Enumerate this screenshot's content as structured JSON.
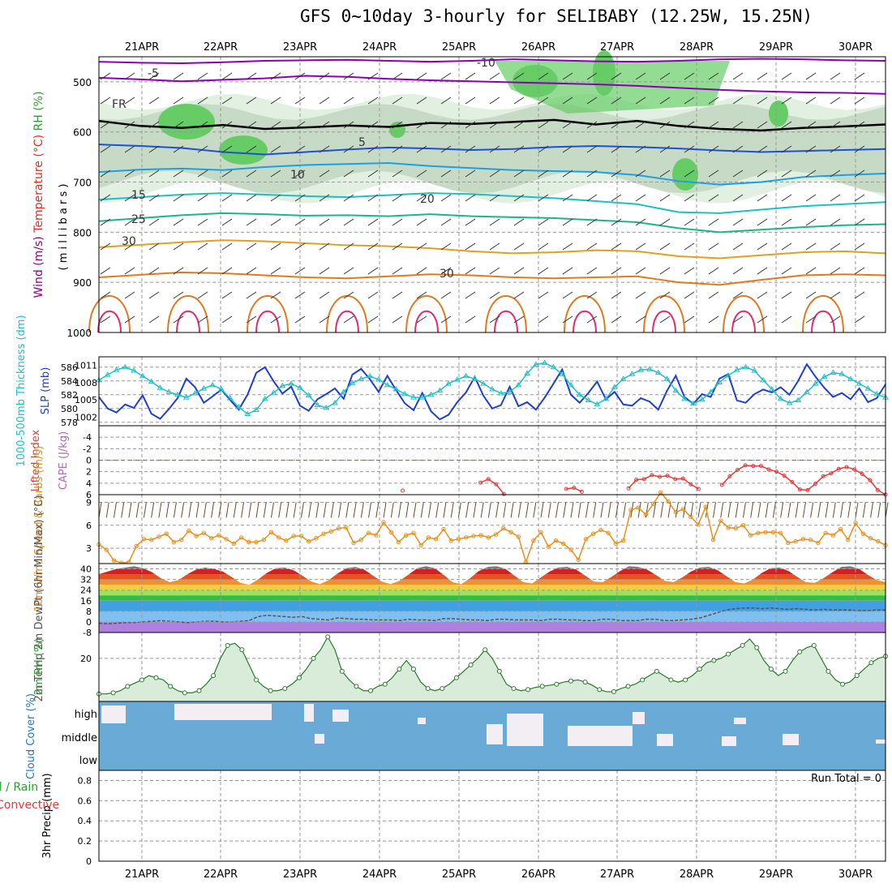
{
  "title": "GFS 0~10day 3-hourly for SELIBABY (12.25W, 15.25N)",
  "run_total": "Run Total = 0",
  "colors": {
    "wind_label": "#8b008b",
    "temp_label": "#e0301e",
    "rh_label": "#2ca02c",
    "rh_fill": "#d9ecd9",
    "rh_mid": "#bfd5bf",
    "rh_hi": "#66cc66",
    "slp_line": "#1e3fd0",
    "thick_line": "#1fc0c8",
    "cape_label": "#b06ab3",
    "li_line": "#e03c3c",
    "wind10_line": "#e8901e",
    "cloud_fill": "#6aaad6",
    "cloud_gap": "#f2eef4"
  },
  "chart_data": [
    {
      "type": "line",
      "panel": "upper-air",
      "x_ticks": [
        "21APR",
        "22APR",
        "23APR",
        "24APR",
        "25APR",
        "26APR",
        "27APR",
        "28APR",
        "29APR",
        "30APR"
      ],
      "y_label_parts": [
        "Wind (m/s)",
        "Temperature (°C)",
        "RH (%)",
        "( m i l l i b a r s )"
      ],
      "y_ticks": [
        "500",
        "600",
        "700",
        "800",
        "900",
        "1000"
      ],
      "ylim": [
        450,
        1000
      ],
      "contour_labels": [
        "-10",
        "-5",
        "FR",
        "5",
        "10",
        "15",
        "20",
        "25",
        "30",
        "30",
        "30",
        "30"
      ],
      "series": [
        {
          "name": "-10",
          "values": [
            460,
            462,
            463,
            461,
            458,
            457,
            456,
            458,
            460,
            458,
            455,
            457,
            459,
            460,
            458,
            455,
            454,
            455,
            457,
            458
          ]
        },
        {
          "name": "-5",
          "values": [
            492,
            495,
            499,
            496,
            493,
            488,
            490,
            494,
            497,
            499,
            501,
            503,
            505,
            508,
            512,
            516,
            519,
            521,
            522,
            524
          ]
        },
        {
          "name": "FR",
          "values": [
            578,
            588,
            592,
            586,
            594,
            591,
            587,
            590,
            582,
            584,
            580,
            576,
            585,
            578,
            588,
            594,
            597,
            592,
            589,
            585
          ]
        },
        {
          "name": "5",
          "values": [
            625,
            628,
            632,
            640,
            645,
            640,
            635,
            631,
            633,
            636,
            634,
            630,
            628,
            630,
            633,
            637,
            640,
            638,
            636,
            634
          ]
        },
        {
          "name": "10",
          "values": [
            680,
            675,
            673,
            676,
            670,
            666,
            664,
            662,
            668,
            672,
            676,
            678,
            680,
            686,
            698,
            705,
            700,
            690,
            686,
            683
          ]
        },
        {
          "name": "15",
          "values": [
            735,
            730,
            725,
            722,
            725,
            728,
            730,
            726,
            722,
            724,
            728,
            732,
            738,
            744,
            760,
            762,
            755,
            748,
            744,
            740
          ]
        },
        {
          "name": "20",
          "values": [
            778,
            772,
            766,
            762,
            764,
            767,
            766,
            768,
            764,
            768,
            770,
            772,
            776,
            780,
            792,
            800,
            795,
            790,
            786,
            784
          ]
        },
        {
          "name": "25",
          "values": [
            830,
            825,
            820,
            816,
            818,
            822,
            826,
            828,
            832,
            838,
            842,
            840,
            836,
            838,
            848,
            852,
            846,
            840,
            838,
            842
          ]
        },
        {
          "name": "30",
          "values": [
            890,
            885,
            880,
            882,
            886,
            890,
            892,
            888,
            884,
            886,
            890,
            892,
            890,
            888,
            900,
            905,
            895,
            886,
            884,
            886
          ]
        }
      ]
    },
    {
      "type": "line",
      "panel": "thickness-slp",
      "y_label_left": "1000-500mb Thickness (dm)",
      "y_label_right": "SLP (mb)",
      "left_ticks": [
        "586",
        "584",
        "582",
        "580",
        "578"
      ],
      "right_ticks": [
        "1011",
        "1008",
        "1005",
        "1002"
      ],
      "left_lim": [
        577.5,
        587.5
      ],
      "right_lim": [
        1000.5,
        1012.5
      ],
      "series": [
        {
          "name": "SLP (mb)",
          "values": [
            1005.5,
            1003.5,
            1002.8,
            1004.2,
            1003.6,
            1005.8,
            1002.6,
            1001.7,
            1003.4,
            1005.3,
            1008.7,
            1007.2,
            1004.5,
            1005.6,
            1006.8,
            1005.0,
            1003.3,
            1005.9,
            1009.7,
            1010.7,
            1008.2,
            1006.1,
            1007.3,
            1004.0,
            1003.1,
            1005.1,
            1006.0,
            1007.0,
            1005.2,
            1009.4,
            1010.4,
            1008.6,
            1006.4,
            1009.2,
            1006.7,
            1004.4,
            1003.2,
            1006.2,
            1003.0,
            1001.6,
            1002.4,
            1004.6,
            1006.3,
            1009.0,
            1005.7,
            1003.5,
            1004.1,
            1007.3,
            1003.9,
            1004.6,
            1003.3,
            1005.4,
            1007.8,
            1010.3,
            1005.9,
            1004.5,
            1006.2,
            1008.2,
            1005.1,
            1006.4,
            1004.2,
            1004.0,
            1005.3,
            1004.7,
            1003.3,
            1006.6,
            1009.2,
            1005.5,
            1004.3,
            1006.0,
            1005.5,
            1008.7,
            1009.5,
            1004.9,
            1004.5,
            1006.0,
            1006.8,
            1006.3,
            1007.2,
            1005.9,
            1008.3,
            1011.2,
            1009.0,
            1007.1,
            1005.5,
            1006.2,
            1005.1,
            1007.0,
            1004.6,
            1005.3,
            1007.7
          ]
        },
        {
          "name": "1000-500mb Thickness (dm)",
          "values": [
            584.1,
            584.9,
            585.6,
            586.0,
            585.5,
            584.7,
            583.9,
            583.0,
            582.4,
            582.0,
            581.6,
            582.2,
            582.9,
            583.4,
            582.8,
            581.5,
            580.2,
            579.2,
            579.8,
            581.4,
            582.3,
            583.3,
            583.6,
            583.0,
            581.9,
            580.5,
            580.1,
            580.8,
            582.4,
            583.7,
            584.3,
            584.7,
            584.2,
            583.4,
            582.8,
            582.1,
            581.6,
            581.6,
            582.0,
            582.6,
            583.6,
            584.2,
            584.7,
            584.3,
            583.6,
            582.8,
            582.2,
            582.4,
            583.4,
            585.1,
            586.4,
            586.6,
            586.0,
            585.0,
            583.4,
            582.0,
            581.2,
            580.6,
            581.4,
            583.1,
            584.3,
            585.0,
            585.6,
            585.7,
            585.2,
            584.3,
            582.6,
            581.4,
            580.7,
            581.3,
            582.4,
            583.8,
            584.8,
            585.6,
            586.0,
            585.5,
            584.1,
            582.8,
            581.4,
            580.8,
            581.2,
            582.4,
            583.6,
            584.6,
            585.2,
            585.0,
            584.3,
            583.6,
            582.9,
            582.1,
            581.6
          ]
        }
      ]
    },
    {
      "type": "line",
      "panel": "lifted-index-cape",
      "y_label_left": "Lifted Index",
      "y_label_right": "CAPE (J/kg)",
      "y_ticks": [
        "-4",
        "-2",
        "0",
        "2",
        "4",
        "6"
      ],
      "ylim": [
        6,
        -6
      ],
      "series": [
        {
          "name": "Lifted Index",
          "values": [
            null,
            null,
            null,
            null,
            null,
            null,
            null,
            null,
            null,
            null,
            null,
            null,
            null,
            null,
            null,
            null,
            null,
            null,
            null,
            null,
            null,
            null,
            null,
            null,
            null,
            null,
            null,
            null,
            null,
            null,
            null,
            null,
            null,
            null,
            null,
            null,
            null,
            null,
            null,
            5.3,
            null,
            null,
            null,
            null,
            null,
            null,
            null,
            null,
            null,
            3.9,
            3.3,
            4.2,
            5.9,
            null,
            null,
            null,
            null,
            null,
            null,
            null,
            5.0,
            4.8,
            5.5,
            null,
            null,
            null,
            null,
            null,
            4.9,
            3.4,
            3.3,
            2.6,
            2.9,
            2.7,
            3.3,
            3.2,
            4.2,
            5.0,
            null,
            null,
            4.3,
            2.8,
            1.7,
            0.9,
            1.0,
            1.0,
            1.6,
            2.0,
            2.7,
            3.8,
            5.1,
            5.2,
            4.1,
            2.8,
            2.3,
            1.5,
            1.2,
            1.6,
            2.4,
            3.5,
            5.2,
            6.0
          ]
        }
      ]
    },
    {
      "type": "line",
      "panel": "10m-wind",
      "y_label": "10m Wind Speed & Barbs (m/s)",
      "y_ticks": [
        "3",
        "6",
        "9"
      ],
      "ylim": [
        1,
        10
      ],
      "series": [
        {
          "name": "10m Wind Speed",
          "values": [
            3.5,
            2.8,
            1.4,
            1.1,
            1.2,
            3.3,
            4.2,
            4.1,
            4.5,
            4.9,
            3.8,
            4.1,
            5.3,
            4.6,
            5.0,
            4.3,
            4.7,
            4.2,
            3.6,
            4.4,
            3.8,
            3.8,
            4.1,
            5.1,
            4.4,
            4.0,
            4.6,
            4.6,
            3.9,
            4.3,
            4.9,
            5.2,
            5.6,
            5.7,
            3.7,
            4.1,
            5.0,
            4.7,
            6.4,
            5.1,
            3.8,
            4.7,
            5.0,
            3.4,
            4.4,
            4.2,
            5.5,
            4.0,
            4.2,
            4.4,
            4.6,
            4.7,
            4.4,
            4.8,
            5.6,
            5.1,
            4.5,
            1.2,
            4.0,
            5.1,
            3.2,
            4.0,
            3.6,
            2.8,
            1.5,
            4.2,
            4.9,
            5.4,
            5.0,
            3.6,
            4.0,
            8.0,
            8.3,
            7.4,
            8.8,
            10.3,
            9.1,
            7.7,
            8.1,
            7.1,
            6.1,
            8.4,
            4.1,
            6.6,
            5.7,
            5.6,
            6.0,
            4.7,
            5.0,
            5.1,
            5.1,
            5.0,
            3.7,
            3.9,
            4.2,
            4.1,
            3.7,
            5.0,
            4.7,
            5.5,
            4.1,
            6.3,
            4.9,
            4.3,
            3.9,
            3.4
          ]
        }
      ]
    },
    {
      "type": "line",
      "panel": "2m-temp",
      "y_label": "2m Temp 2m DewPt (6hr Min/Max) (°C)",
      "y_ticks": [
        "40",
        "32",
        "24",
        "16",
        "8",
        "0",
        "-8"
      ],
      "ylim": [
        -8,
        44
      ],
      "series": [
        {
          "name": "2m Temp",
          "values": [
            36.0,
            38.0,
            40.0,
            41.0,
            42.0,
            40.5,
            37.5,
            33.0,
            30.0,
            31.5,
            36.0,
            39.5,
            41.0,
            40.0,
            38.0,
            34.0,
            29.5,
            28.0,
            32.0,
            37.0,
            40.5,
            41.0,
            39.0,
            35.0,
            30.5,
            28.5,
            31.5,
            36.5,
            40.5,
            41.5,
            39.5,
            35.0,
            30.5,
            28.5,
            31.0,
            35.5,
            40.5,
            42.0,
            40.5,
            35.5,
            30.0,
            28.5,
            33.0,
            38.5,
            41.5,
            42.0,
            40.0,
            35.0,
            30.0,
            29.0,
            33.5,
            38.0,
            41.0,
            41.5,
            39.5,
            35.0,
            30.5,
            30.0,
            34.0,
            38.5,
            42.0,
            41.5,
            39.5,
            35.5,
            31.0,
            30.0,
            33.5,
            38.0,
            41.0,
            41.5,
            39.0,
            34.5,
            30.0,
            29.0,
            32.0,
            37.0,
            40.5,
            41.0,
            38.5,
            34.0,
            30.0,
            29.5,
            33.0,
            37.5,
            41.5,
            42.0,
            40.0,
            35.5,
            31.5,
            30.0
          ]
        },
        {
          "name": "2m DewPt",
          "values": [
            -1.0,
            -1.5,
            -1.0,
            -0.5,
            -0.5,
            0.0,
            0.5,
            1.0,
            0.5,
            0.0,
            -0.5,
            0.0,
            0.5,
            0.5,
            0.0,
            0.0,
            0.5,
            1.0,
            4.0,
            5.0,
            4.5,
            4.0,
            3.5,
            4.0,
            2.5,
            2.0,
            1.5,
            3.0,
            2.5,
            2.0,
            2.0,
            1.5,
            1.5,
            1.5,
            1.0,
            2.0,
            1.5,
            1.5,
            1.0,
            2.5,
            2.5,
            2.0,
            1.5,
            1.5,
            1.0,
            2.0,
            2.0,
            1.5,
            1.5,
            1.5,
            1.0,
            2.0,
            2.0,
            1.5,
            1.5,
            1.0,
            1.0,
            2.0,
            2.0,
            1.0,
            1.0,
            1.0,
            2.0,
            2.0,
            1.0,
            1.0,
            1.5,
            2.0,
            3.0,
            5.0,
            7.0,
            9.0,
            10.0,
            10.5,
            10.5,
            10.0,
            10.5,
            10.0,
            9.5,
            10.0,
            9.5,
            9.0,
            9.5,
            9.0,
            9.0,
            9.0,
            8.5,
            8.5,
            9.0,
            9.0
          ]
        }
      ]
    },
    {
      "type": "area",
      "panel": "2m-rh",
      "y_label": "2m RH (%)",
      "y_ticks": [
        "20"
      ],
      "ylim": [
        0,
        32
      ],
      "series": [
        {
          "name": "2m RH",
          "values": [
            3.5,
            3.5,
            4,
            5,
            7,
            8.5,
            10,
            12,
            11,
            10,
            7,
            5,
            4,
            4,
            5,
            8,
            12,
            20,
            26,
            27,
            24,
            17,
            10,
            7,
            5,
            5,
            6,
            8,
            11,
            15,
            20,
            24,
            30,
            24,
            14,
            10,
            7,
            5,
            5,
            7,
            8,
            11,
            15,
            19,
            15,
            9,
            6,
            5,
            6,
            8,
            11,
            14,
            17,
            20,
            24,
            20,
            14,
            8,
            6,
            5,
            5.5,
            6.5,
            7,
            7.5,
            8,
            9,
            9.5,
            10,
            9,
            7.5,
            5.5,
            4.5,
            4.5,
            6,
            7,
            8,
            10,
            12,
            14,
            12,
            10,
            9,
            10,
            12,
            15,
            18,
            19,
            20,
            22,
            24,
            26,
            29,
            25,
            19,
            15,
            12,
            14,
            19,
            23,
            25,
            26,
            20,
            14,
            10,
            8,
            9,
            12,
            15,
            18,
            20,
            21
          ]
        }
      ]
    },
    {
      "type": "bar",
      "panel": "cloud-cover",
      "y_label": "Cloud Cover (%)",
      "categories": [
        "high",
        "middle",
        "low"
      ],
      "values": [
        0,
        0,
        0
      ]
    },
    {
      "type": "bar",
      "panel": "precip",
      "y_label": "3hr Precip (mm)",
      "legend": [
        "Total / Rain",
        "Convective"
      ],
      "y_ticks": [
        "0.8",
        "0.6",
        "0.4",
        "0.2",
        "0"
      ],
      "ylim": [
        0,
        0.9
      ],
      "values": [
        0,
        0,
        0,
        0,
        0,
        0,
        0,
        0,
        0,
        0
      ]
    }
  ]
}
